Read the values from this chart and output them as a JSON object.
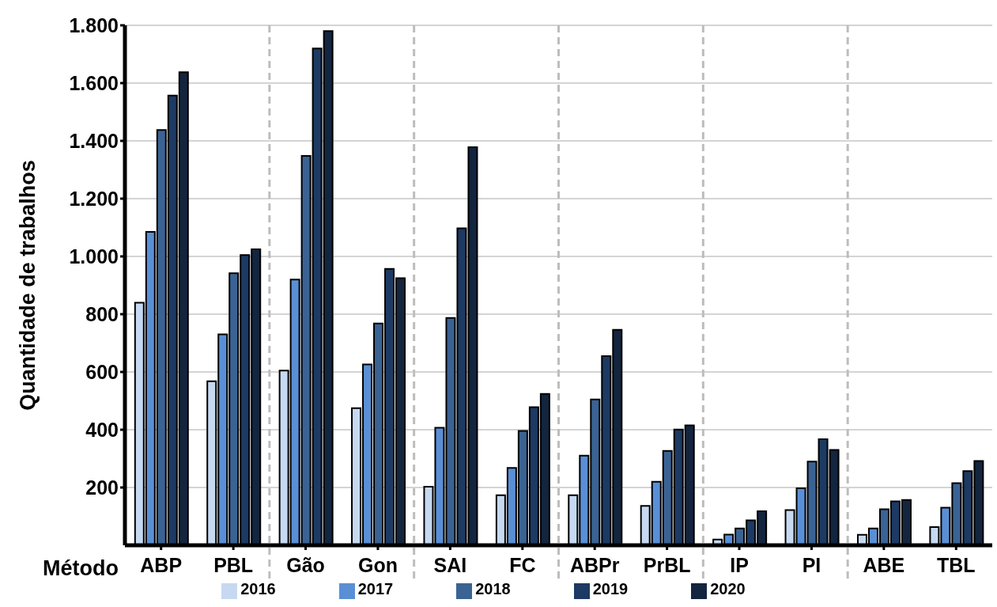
{
  "chart_data": {
    "type": "bar",
    "ylabel": "Quantidade de trabalhos",
    "xlabel": "Método",
    "categories": [
      "ABP",
      "PBL",
      "Gão",
      "Gon",
      "SAI",
      "FC",
      "ABPr",
      "PrBL",
      "IP",
      "PI",
      "ABE",
      "TBL"
    ],
    "series": [
      {
        "name": "2016",
        "color": "#c6d9f1",
        "values": [
          840,
          568,
          605,
          475,
          203,
          173,
          173,
          136,
          20,
          122,
          36,
          63
        ]
      },
      {
        "name": "2017",
        "color": "#5a8fd6",
        "values": [
          1085,
          730,
          920,
          626,
          407,
          268,
          310,
          220,
          37,
          197,
          58,
          130
        ]
      },
      {
        "name": "2018",
        "color": "#3a6394",
        "values": [
          1438,
          942,
          1348,
          768,
          787,
          396,
          505,
          327,
          58,
          290,
          125,
          215
        ]
      },
      {
        "name": "2019",
        "color": "#1c3a63",
        "values": [
          1557,
          1005,
          1720,
          957,
          1097,
          478,
          655,
          401,
          86,
          367,
          152,
          257
        ]
      },
      {
        "name": "2020",
        "color": "#13253f",
        "values": [
          1638,
          1025,
          1780,
          925,
          1378,
          524,
          746,
          415,
          118,
          330,
          157,
          292
        ]
      }
    ],
    "ylim": [
      0,
      1800
    ],
    "yticks": [
      {
        "value": 200,
        "label": "200"
      },
      {
        "value": 400,
        "label": "400"
      },
      {
        "value": 600,
        "label": "600"
      },
      {
        "value": 800,
        "label": "800"
      },
      {
        "value": 1000,
        "label": "1.000"
      },
      {
        "value": 1200,
        "label": "1.200"
      },
      {
        "value": 1400,
        "label": "1.400"
      },
      {
        "value": 1600,
        "label": "1.600"
      },
      {
        "value": 1800,
        "label": "1.800"
      }
    ],
    "grid": "y",
    "legend": "bottom"
  }
}
